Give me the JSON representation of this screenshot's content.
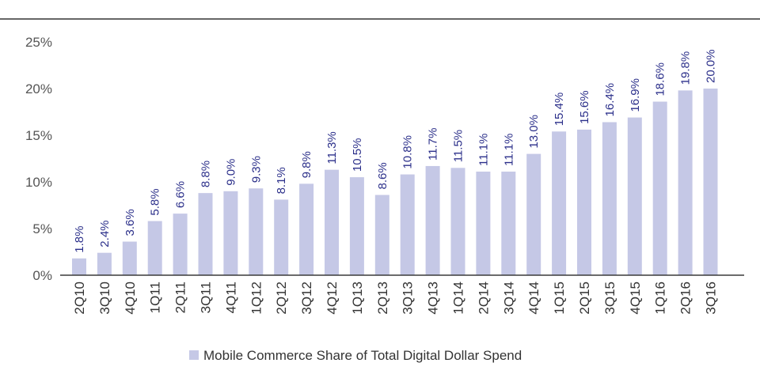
{
  "chart_data": {
    "type": "bar",
    "categories": [
      "2Q10",
      "3Q10",
      "4Q10",
      "1Q11",
      "2Q11",
      "3Q11",
      "4Q11",
      "1Q12",
      "2Q12",
      "3Q12",
      "4Q12",
      "1Q13",
      "2Q13",
      "3Q13",
      "4Q13",
      "1Q14",
      "2Q14",
      "3Q14",
      "4Q14",
      "1Q15",
      "2Q15",
      "3Q15",
      "4Q15",
      "1Q16",
      "2Q16",
      "3Q16"
    ],
    "series": [
      {
        "name": "Mobile Commerce Share of Total Digital Dollar Spend",
        "values": [
          1.8,
          2.4,
          3.6,
          5.8,
          6.6,
          8.8,
          9.0,
          9.3,
          8.1,
          9.8,
          11.3,
          10.5,
          8.6,
          10.8,
          11.7,
          11.5,
          11.1,
          11.1,
          13.0,
          15.4,
          15.6,
          16.4,
          16.9,
          18.6,
          19.8,
          20.0
        ],
        "labels": [
          "1.8%",
          "2.4%",
          "3.6%",
          "5.8%",
          "6.6%",
          "8.8%",
          "9.0%",
          "9.3%",
          "8.1%",
          "9.8%",
          "11.3%",
          "10.5%",
          "8.6%",
          "10.8%",
          "11.7%",
          "11.5%",
          "11.1%",
          "11.1%",
          "13.0%",
          "15.4%",
          "15.6%",
          "16.4%",
          "16.9%",
          "18.6%",
          "19.8%",
          "20.0%"
        ]
      }
    ],
    "yticks": [
      0,
      5,
      10,
      15,
      20,
      25
    ],
    "ytick_labels": [
      "0%",
      "5%",
      "10%",
      "15%",
      "20%",
      "25%"
    ],
    "ylim": [
      0,
      25
    ],
    "title": "",
    "xlabel": "",
    "ylabel": "",
    "grid": false,
    "legend_position": "bottom-center"
  },
  "colors": {
    "bar": "#c5c8e6",
    "label": "#2b2f8a",
    "axis": "#3a3a3a",
    "tick_text": "#555555"
  }
}
